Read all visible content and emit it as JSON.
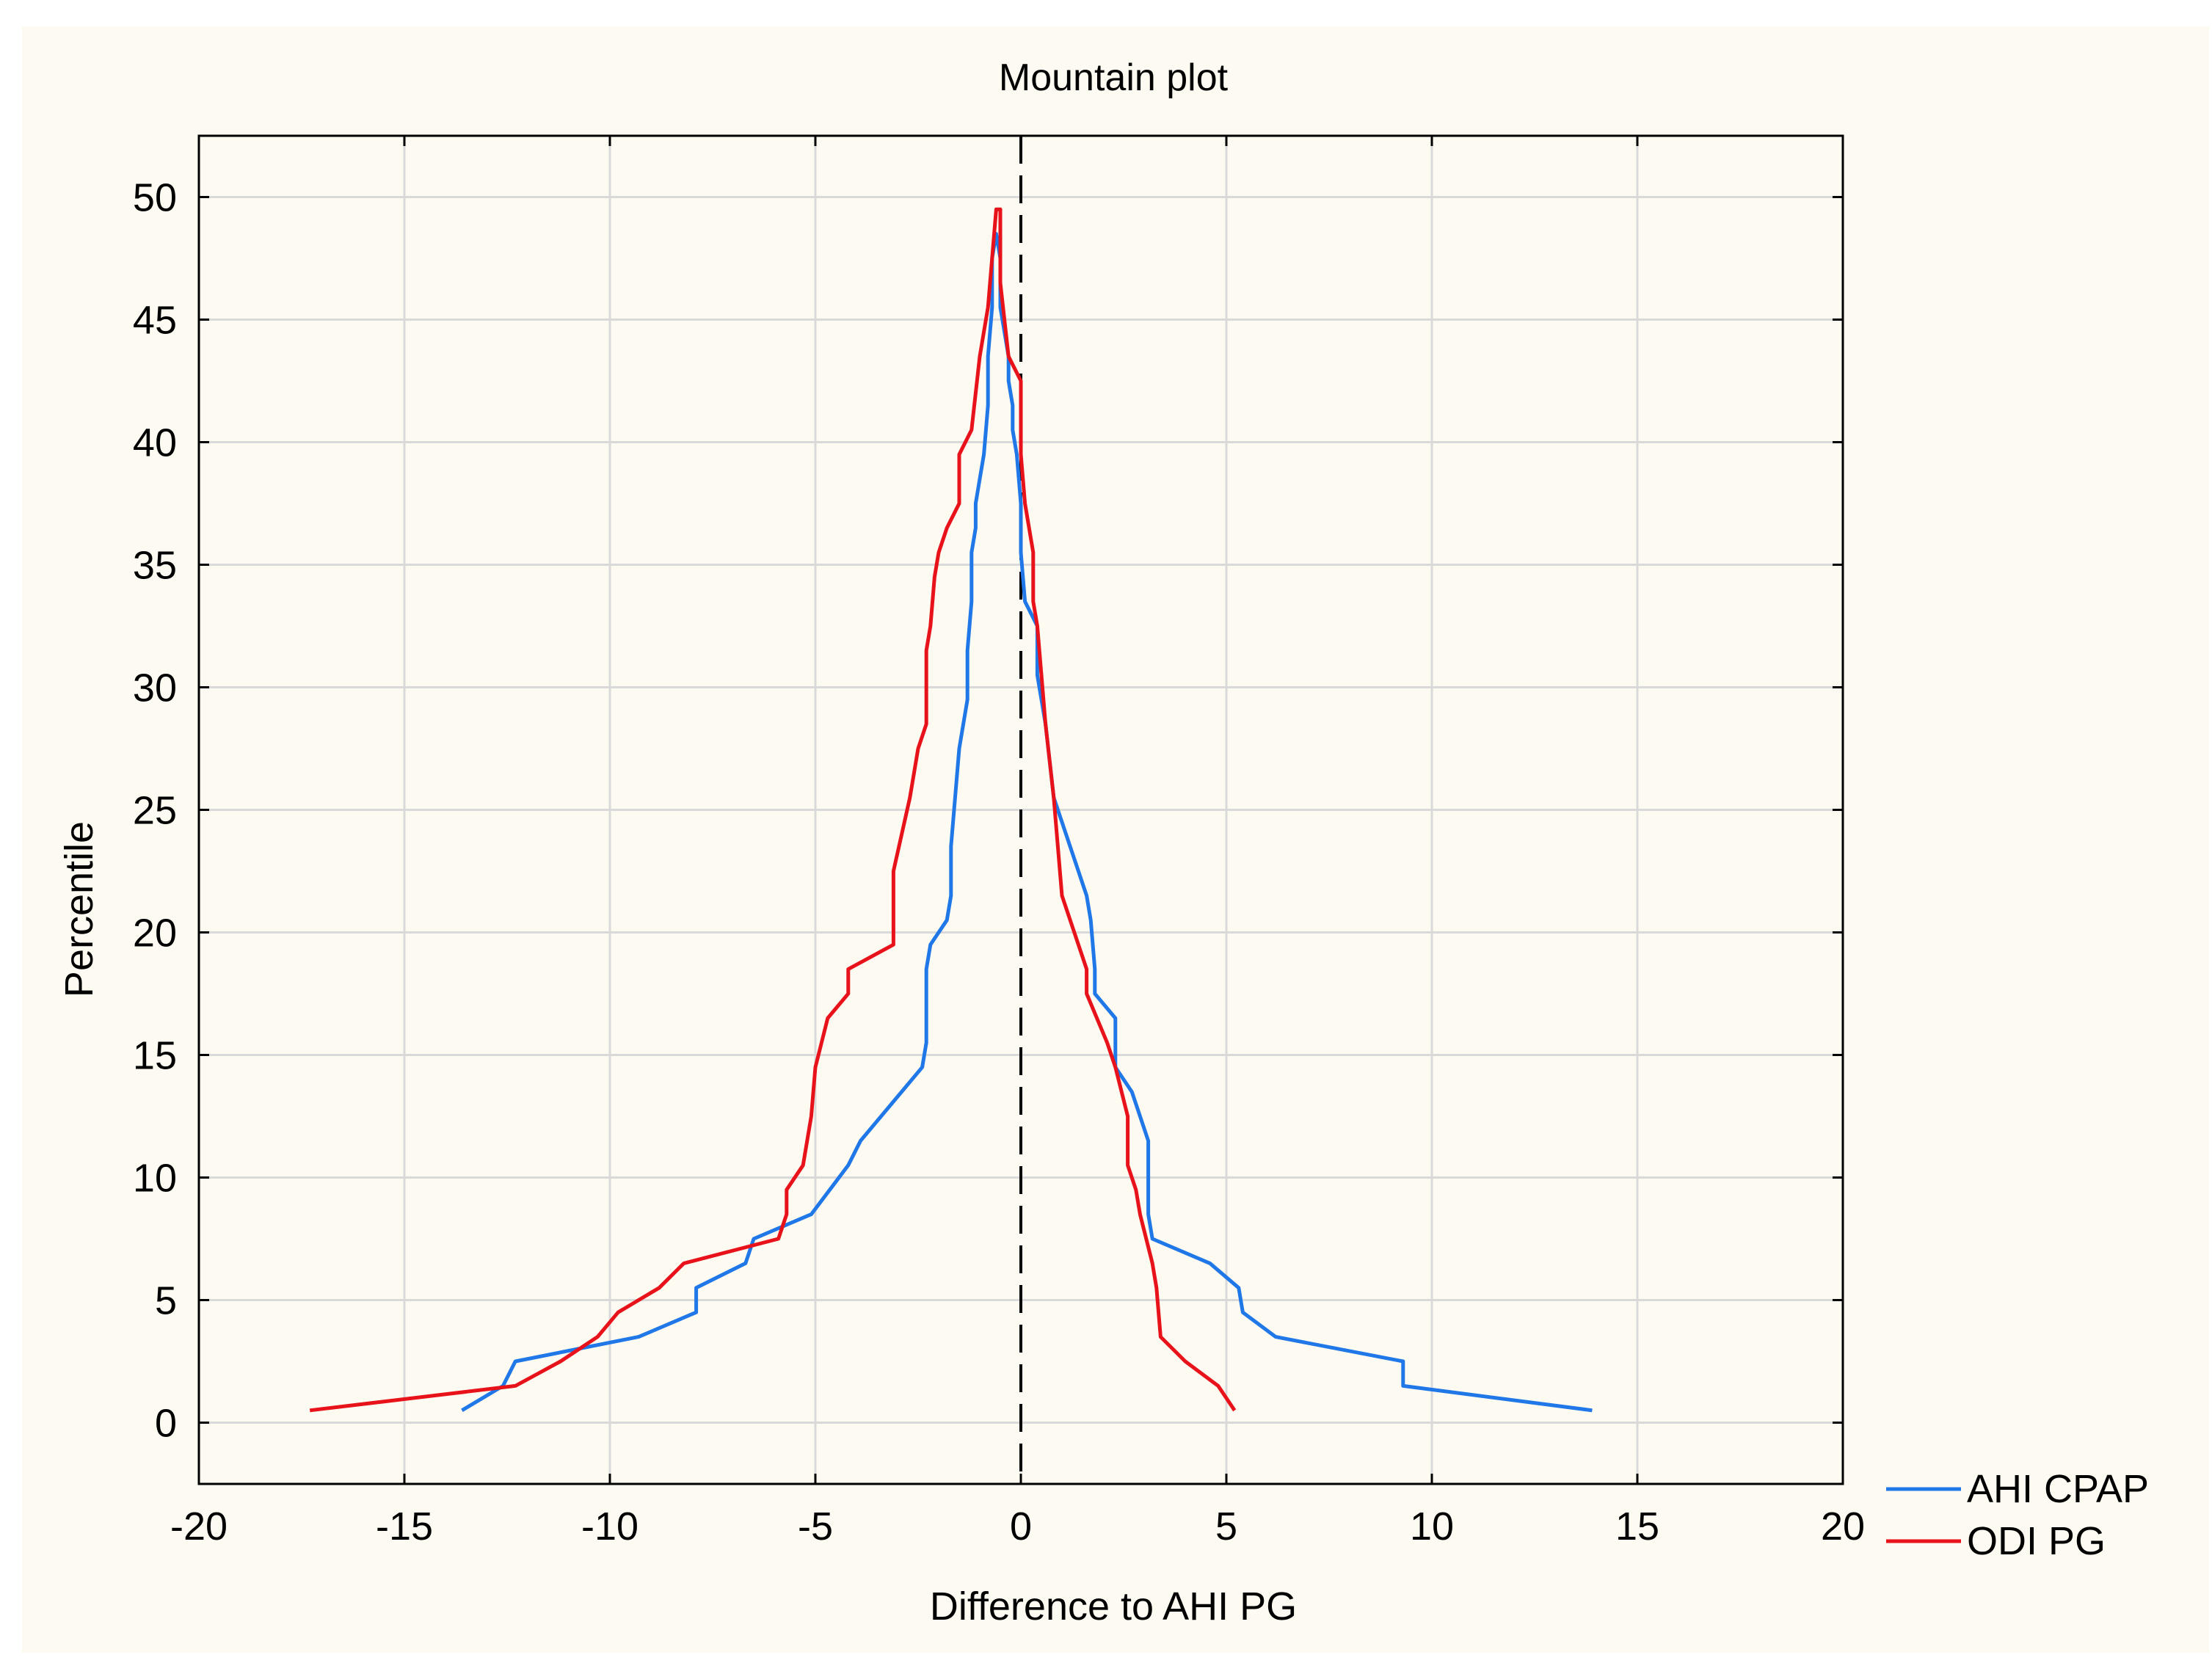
{
  "chart_data": {
    "type": "line",
    "title": "Mountain plot",
    "xlabel": "Difference to AHI PG",
    "ylabel": "Percentile",
    "xlim": [
      -20,
      20
    ],
    "ylim": [
      -2.5,
      52.5
    ],
    "xticks": [
      -20,
      -15,
      -10,
      -5,
      0,
      5,
      10,
      15,
      20
    ],
    "yticks": [
      0,
      5,
      10,
      15,
      20,
      25,
      30,
      35,
      40,
      45,
      50
    ],
    "grid": true,
    "legend": "bottom-right, outside plot",
    "reference_line": {
      "x": 0,
      "style": "dashed",
      "color": "#000000"
    },
    "series": [
      {
        "name": "AHI CPAP",
        "color": "#1f77e8",
        "points": [
          [
            -13.6,
            0.5
          ],
          [
            -12.6,
            1.5
          ],
          [
            -12.3,
            2.5
          ],
          [
            -9.3,
            3.5
          ],
          [
            -7.9,
            4.5
          ],
          [
            -7.9,
            5.5
          ],
          [
            -6.7,
            6.5
          ],
          [
            -6.5,
            7.5
          ],
          [
            -5.1,
            8.5
          ],
          [
            -4.2,
            10.5
          ],
          [
            -3.9,
            11.5
          ],
          [
            -3.4,
            12.5
          ],
          [
            -2.9,
            13.5
          ],
          [
            -2.4,
            14.5
          ],
          [
            -2.3,
            15.5
          ],
          [
            -2.3,
            18.5
          ],
          [
            -2.2,
            19.5
          ],
          [
            -1.8,
            20.5
          ],
          [
            -1.7,
            21.5
          ],
          [
            -1.7,
            23.5
          ],
          [
            -1.6,
            25.5
          ],
          [
            -1.5,
            27.5
          ],
          [
            -1.3,
            29.5
          ],
          [
            -1.3,
            31.5
          ],
          [
            -1.2,
            33.5
          ],
          [
            -1.2,
            35.5
          ],
          [
            -1.1,
            36.5
          ],
          [
            -1.1,
            37.5
          ],
          [
            -1.0,
            38.5
          ],
          [
            -0.9,
            39.5
          ],
          [
            -0.8,
            41.5
          ],
          [
            -0.8,
            43.5
          ],
          [
            -0.7,
            45.5
          ],
          [
            -0.7,
            47.5
          ],
          [
            -0.6,
            48.5
          ],
          [
            -0.6,
            48.5
          ],
          [
            -0.5,
            47.5
          ],
          [
            -0.5,
            45.5
          ],
          [
            -0.3,
            43.5
          ],
          [
            -0.3,
            42.5
          ],
          [
            -0.2,
            41.5
          ],
          [
            -0.2,
            40.5
          ],
          [
            -0.1,
            39.5
          ],
          [
            0.0,
            37.5
          ],
          [
            0.0,
            36.5
          ],
          [
            0.0,
            35.5
          ],
          [
            0.1,
            33.5
          ],
          [
            0.4,
            32.5
          ],
          [
            0.4,
            30.5
          ],
          [
            0.5,
            29.5
          ],
          [
            0.6,
            28.5
          ],
          [
            0.8,
            25.5
          ],
          [
            1.6,
            21.5
          ],
          [
            1.7,
            20.5
          ],
          [
            1.8,
            18.5
          ],
          [
            1.8,
            17.5
          ],
          [
            2.3,
            16.5
          ],
          [
            2.3,
            14.5
          ],
          [
            2.7,
            13.5
          ],
          [
            3.1,
            11.5
          ],
          [
            3.1,
            8.5
          ],
          [
            3.2,
            7.5
          ],
          [
            4.6,
            6.5
          ],
          [
            5.3,
            5.5
          ],
          [
            5.4,
            4.5
          ],
          [
            6.2,
            3.5
          ],
          [
            9.3,
            2.5
          ],
          [
            9.3,
            1.5
          ],
          [
            13.9,
            0.5
          ]
        ]
      },
      {
        "name": "ODI PG",
        "color": "#e8121a",
        "points": [
          [
            -17.3,
            0.5
          ],
          [
            -12.3,
            1.5
          ],
          [
            -11.2,
            2.5
          ],
          [
            -10.3,
            3.5
          ],
          [
            -9.8,
            4.5
          ],
          [
            -8.8,
            5.5
          ],
          [
            -8.2,
            6.5
          ],
          [
            -5.9,
            7.5
          ],
          [
            -5.7,
            8.5
          ],
          [
            -5.7,
            9.5
          ],
          [
            -5.3,
            10.5
          ],
          [
            -5.1,
            12.5
          ],
          [
            -5.0,
            14.5
          ],
          [
            -4.7,
            16.5
          ],
          [
            -4.2,
            17.5
          ],
          [
            -4.2,
            18.5
          ],
          [
            -3.1,
            19.5
          ],
          [
            -3.1,
            22.5
          ],
          [
            -2.7,
            25.5
          ],
          [
            -2.6,
            26.5
          ],
          [
            -2.5,
            27.5
          ],
          [
            -2.3,
            28.5
          ],
          [
            -2.3,
            31.5
          ],
          [
            -2.2,
            32.5
          ],
          [
            -2.1,
            34.5
          ],
          [
            -2.0,
            35.5
          ],
          [
            -1.8,
            36.5
          ],
          [
            -1.5,
            37.5
          ],
          [
            -1.5,
            39.5
          ],
          [
            -1.2,
            40.5
          ],
          [
            -1.0,
            43.5
          ],
          [
            -0.8,
            45.5
          ],
          [
            -0.7,
            47.5
          ],
          [
            -0.6,
            49.5
          ],
          [
            -0.5,
            49.5
          ],
          [
            -0.5,
            46.5
          ],
          [
            -0.3,
            43.5
          ],
          [
            0.0,
            42.5
          ],
          [
            0.0,
            39.5
          ],
          [
            0.1,
            37.5
          ],
          [
            0.2,
            36.5
          ],
          [
            0.3,
            35.5
          ],
          [
            0.3,
            33.5
          ],
          [
            0.4,
            32.5
          ],
          [
            0.5,
            30.5
          ],
          [
            0.6,
            28.5
          ],
          [
            0.8,
            25.5
          ],
          [
            0.9,
            23.5
          ],
          [
            1.0,
            21.5
          ],
          [
            1.6,
            18.5
          ],
          [
            1.6,
            17.5
          ],
          [
            2.1,
            15.5
          ],
          [
            2.3,
            14.5
          ],
          [
            2.6,
            12.5
          ],
          [
            2.6,
            10.5
          ],
          [
            2.8,
            9.5
          ],
          [
            2.9,
            8.5
          ],
          [
            3.2,
            6.5
          ],
          [
            3.3,
            5.5
          ],
          [
            3.4,
            3.5
          ],
          [
            4.0,
            2.5
          ],
          [
            4.8,
            1.5
          ],
          [
            5.2,
            0.5
          ]
        ]
      }
    ]
  }
}
